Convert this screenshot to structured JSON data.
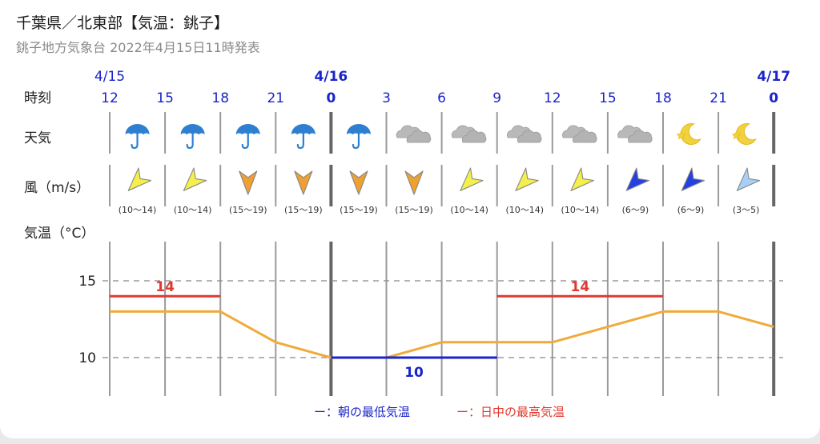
{
  "header": {
    "title": "千葉県／北東部【気温：銚子】",
    "subtitle": "銚子地方気象台 2022年4月15日11時発表"
  },
  "rows": {
    "time_label": "時刻",
    "weather_label": "天気",
    "wind_label": "風（m/s）",
    "temp_label": "気温（°C）"
  },
  "colors": {
    "accent_blue": "#1a24c8",
    "temp_line": "#f0aa3c",
    "max_line": "#e0392f",
    "min_line": "#1a24c8"
  },
  "dates": [
    {
      "label": "4/15",
      "bold": false,
      "slot": 0
    },
    {
      "label": "4/16",
      "bold": true,
      "slot": 4
    },
    {
      "label": "4/17",
      "bold": true,
      "slot": 12
    }
  ],
  "hours": [
    "12",
    "15",
    "18",
    "21",
    "0",
    "3",
    "6",
    "9",
    "12",
    "15",
    "18",
    "21",
    "0"
  ],
  "weather": [
    {
      "icon": "umbrella-icon"
    },
    {
      "icon": "umbrella-icon"
    },
    {
      "icon": "umbrella-icon"
    },
    {
      "icon": "umbrella-icon"
    },
    {
      "icon": "umbrella-icon"
    },
    {
      "icon": "cloud-icon"
    },
    {
      "icon": "cloud-icon"
    },
    {
      "icon": "cloud-icon"
    },
    {
      "icon": "cloud-icon"
    },
    {
      "icon": "cloud-icon"
    },
    {
      "icon": "moon-icon"
    },
    {
      "icon": "moon-icon"
    }
  ],
  "wind": [
    {
      "range": "(10〜14)",
      "direction": "NE",
      "color": "#f4ef4a"
    },
    {
      "range": "(10〜14)",
      "direction": "NE",
      "color": "#f4ef4a"
    },
    {
      "range": "(15〜19)",
      "direction": "N",
      "color": "#f0a030"
    },
    {
      "range": "(15〜19)",
      "direction": "N",
      "color": "#f0a030"
    },
    {
      "range": "(15〜19)",
      "direction": "N",
      "color": "#f0a030"
    },
    {
      "range": "(15〜19)",
      "direction": "N",
      "color": "#f0a030"
    },
    {
      "range": "(10〜14)",
      "direction": "NE",
      "color": "#f4ef4a"
    },
    {
      "range": "(10〜14)",
      "direction": "NE",
      "color": "#f4ef4a"
    },
    {
      "range": "(10〜14)",
      "direction": "NE",
      "color": "#f4ef4a"
    },
    {
      "range": "(6〜9)",
      "direction": "NE",
      "color": "#2540e0"
    },
    {
      "range": "(6〜9)",
      "direction": "NE",
      "color": "#2540e0"
    },
    {
      "range": "(3〜5)",
      "direction": "NE",
      "color": "#a8cff5"
    }
  ],
  "chart_data": {
    "type": "line",
    "x": [
      "12",
      "15",
      "18",
      "21",
      "0",
      "3",
      "6",
      "9",
      "12",
      "15",
      "18",
      "21",
      "0"
    ],
    "series": [
      {
        "values": [
          13,
          13,
          13,
          11,
          10,
          10,
          11,
          11,
          11,
          12,
          13,
          13,
          12
        ]
      }
    ],
    "ylim": [
      8,
      17
    ],
    "yticks": [
      15,
      10
    ],
    "gridlines": [
      15,
      10
    ],
    "min_temp": {
      "value": 10,
      "label": "10",
      "from_slot": 4,
      "to_slot": 7
    },
    "max_temps": [
      {
        "value": 14,
        "label": "14",
        "from_slot": 0,
        "to_slot": 2
      },
      {
        "value": 14,
        "label": "14",
        "from_slot": 7,
        "to_slot": 10
      }
    ],
    "legend": {
      "min_text": "ー：朝の最低気温",
      "max_text": "ー：日中の最高気温",
      "position": "bottom-center"
    }
  }
}
